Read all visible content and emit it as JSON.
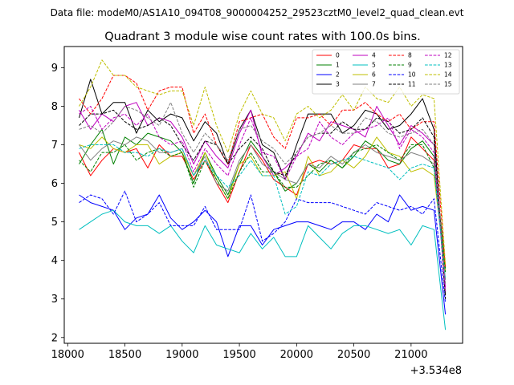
{
  "chart_data": {
    "type": "line",
    "suptitle": "Data file: modeM0/AS1A10_094T08_9000004252_29523cztM0_level2_quad_clean.evt",
    "title": "Quadrant 3 module wise count rates with 100.0s bins.",
    "xlabel": "",
    "ylabel": "",
    "x_offset_label": "+3.534e8",
    "xlim": [
      17970,
      21450
    ],
    "ylim": [
      1.85,
      9.55
    ],
    "xticks": [
      18000,
      18500,
      19000,
      19500,
      20000,
      20500,
      21000
    ],
    "xtick_labels": [
      "18000",
      "18500",
      "19000",
      "19500",
      "20000",
      "20500",
      "21000"
    ],
    "yticks": [
      2,
      3,
      4,
      5,
      6,
      7,
      8,
      9
    ],
    "ytick_labels": [
      "2",
      "3",
      "4",
      "5",
      "6",
      "7",
      "8",
      "9"
    ],
    "grid": false,
    "legend_position": "top-right",
    "x": [
      18100,
      18200,
      18300,
      18400,
      18500,
      18600,
      18700,
      18800,
      18900,
      19000,
      19100,
      19200,
      19300,
      19400,
      19500,
      19600,
      19700,
      19800,
      19900,
      20000,
      20100,
      20200,
      20300,
      20400,
      20500,
      20600,
      20700,
      20800,
      20900,
      21000,
      21100,
      21200,
      21300
    ],
    "series": [
      {
        "name": "0",
        "color": "#ff0000",
        "dash": "solid",
        "values": [
          6.8,
          6.2,
          6.6,
          6.9,
          6.8,
          6.9,
          6.4,
          7.0,
          6.7,
          6.7,
          6.1,
          6.6,
          6.0,
          5.5,
          6.3,
          7.0,
          6.6,
          6.1,
          5.9,
          5.7,
          6.5,
          6.6,
          6.5,
          6.6,
          7.0,
          6.9,
          6.9,
          6.4,
          6.5,
          7.2,
          6.9,
          6.6,
          3.7
        ]
      },
      {
        "name": "1",
        "color": "#008000",
        "dash": "solid",
        "values": [
          6.5,
          7.0,
          7.4,
          6.5,
          7.2,
          7.0,
          7.3,
          7.2,
          7.1,
          6.8,
          6.0,
          6.8,
          6.2,
          5.7,
          6.5,
          7.1,
          6.7,
          6.3,
          5.8,
          6.0,
          6.5,
          6.3,
          6.6,
          6.4,
          6.7,
          7.1,
          6.9,
          6.6,
          6.5,
          6.9,
          7.1,
          6.7,
          3.8
        ]
      },
      {
        "name": "2",
        "color": "#0000ff",
        "dash": "solid",
        "values": [
          5.7,
          5.5,
          5.4,
          5.3,
          4.8,
          5.1,
          5.2,
          5.7,
          5.1,
          4.8,
          5.0,
          5.3,
          5.0,
          4.1,
          4.9,
          4.9,
          4.4,
          4.8,
          4.9,
          5.0,
          5.0,
          4.9,
          4.8,
          5.0,
          5.0,
          4.8,
          5.2,
          5.0,
          5.7,
          5.3,
          5.4,
          5.3,
          2.6
        ]
      },
      {
        "name": "3",
        "color": "#000000",
        "dash": "solid",
        "values": [
          7.7,
          8.7,
          7.8,
          8.1,
          8.1,
          7.3,
          7.9,
          7.6,
          7.8,
          7.7,
          7.1,
          7.6,
          7.3,
          6.5,
          7.4,
          7.9,
          7.0,
          6.8,
          6.1,
          7.0,
          7.8,
          7.8,
          7.8,
          7.3,
          7.5,
          7.9,
          7.8,
          7.4,
          7.5,
          7.8,
          8.2,
          7.4,
          3.1
        ]
      },
      {
        "name": "4",
        "color": "#bf00bf",
        "dash": "solid",
        "values": [
          7.9,
          7.4,
          7.8,
          7.6,
          8.0,
          8.1,
          7.5,
          7.7,
          7.6,
          7.2,
          6.5,
          7.1,
          6.7,
          6.4,
          7.3,
          7.9,
          6.7,
          6.2,
          6.4,
          6.7,
          7.3,
          7.1,
          7.6,
          7.5,
          7.4,
          7.2,
          8.0,
          7.5,
          7.0,
          7.5,
          7.3,
          7.0,
          3.3
        ]
      },
      {
        "name": "5",
        "color": "#00bfbf",
        "dash": "solid",
        "values": [
          4.8,
          5.0,
          5.2,
          5.3,
          5.0,
          4.9,
          4.9,
          4.7,
          4.9,
          4.5,
          4.2,
          4.9,
          4.4,
          4.3,
          4.2,
          4.7,
          4.3,
          4.6,
          4.1,
          4.1,
          4.9,
          4.6,
          4.3,
          4.7,
          4.9,
          4.9,
          4.8,
          4.7,
          4.8,
          4.4,
          4.9,
          4.8,
          2.2
        ]
      },
      {
        "name": "6",
        "color": "#bfbf00",
        "dash": "solid",
        "values": [
          7.0,
          6.9,
          7.2,
          6.9,
          6.8,
          7.0,
          7.0,
          6.5,
          6.7,
          6.8,
          6.2,
          6.8,
          6.1,
          5.6,
          6.5,
          6.7,
          6.2,
          6.2,
          6.3,
          5.6,
          6.7,
          6.2,
          6.3,
          6.6,
          6.4,
          6.7,
          7.2,
          6.8,
          6.7,
          6.3,
          6.4,
          6.2,
          3.7
        ]
      },
      {
        "name": "7",
        "color": "#808080",
        "dash": "solid",
        "values": [
          7.0,
          6.6,
          6.9,
          7.1,
          7.0,
          7.2,
          7.1,
          6.8,
          6.8,
          6.9,
          6.2,
          6.7,
          6.0,
          5.8,
          6.6,
          7.0,
          6.5,
          6.3,
          6.1,
          6.0,
          6.5,
          6.4,
          6.7,
          6.5,
          6.8,
          7.0,
          6.8,
          6.7,
          6.6,
          6.8,
          6.7,
          6.5,
          3.5
        ]
      },
      {
        "name": "8",
        "color": "#ff0000",
        "dash": "dashed",
        "values": [
          8.2,
          7.8,
          8.2,
          8.8,
          8.8,
          8.6,
          7.9,
          8.4,
          8.5,
          8.5,
          7.3,
          7.8,
          7.0,
          6.5,
          7.6,
          7.7,
          7.8,
          7.2,
          6.9,
          7.7,
          7.7,
          7.8,
          7.5,
          7.9,
          7.9,
          8.1,
          7.8,
          7.6,
          7.8,
          7.4,
          7.6,
          7.6,
          3.8
        ]
      },
      {
        "name": "9",
        "color": "#008000",
        "dash": "dashed",
        "values": [
          6.6,
          6.3,
          6.8,
          6.8,
          7.0,
          6.6,
          6.8,
          6.9,
          6.7,
          6.8,
          5.9,
          6.6,
          6.1,
          5.6,
          6.3,
          6.8,
          6.3,
          6.3,
          5.9,
          5.9,
          6.2,
          6.5,
          6.6,
          6.4,
          6.8,
          6.9,
          7.0,
          6.8,
          6.6,
          7.0,
          7.0,
          6.4,
          3.7
        ]
      },
      {
        "name": "10",
        "color": "#0000ff",
        "dash": "dashed",
        "values": [
          5.5,
          5.7,
          5.6,
          5.2,
          5.8,
          5.0,
          5.2,
          5.5,
          4.9,
          4.9,
          4.9,
          5.4,
          4.8,
          4.8,
          4.8,
          5.7,
          4.5,
          4.7,
          5.0,
          5.6,
          5.5,
          5.5,
          5.5,
          5.4,
          5.3,
          5.2,
          5.5,
          5.4,
          5.3,
          5.4,
          5.2,
          5.6,
          2.9
        ]
      },
      {
        "name": "11",
        "color": "#000000",
        "dash": "dashed",
        "values": [
          7.5,
          7.8,
          7.8,
          7.9,
          7.6,
          7.4,
          7.5,
          7.7,
          7.5,
          7.0,
          6.6,
          7.1,
          7.0,
          6.5,
          6.9,
          7.2,
          6.9,
          6.3,
          6.2,
          6.8,
          7.2,
          7.3,
          7.3,
          7.6,
          7.4,
          7.4,
          7.7,
          7.6,
          7.3,
          7.4,
          7.7,
          7.2,
          3.0
        ]
      },
      {
        "name": "12",
        "color": "#bf00bf",
        "dash": "dashed",
        "values": [
          7.8,
          8.0,
          7.4,
          7.7,
          7.8,
          7.5,
          7.8,
          7.2,
          7.0,
          7.1,
          6.3,
          6.9,
          6.5,
          6.2,
          7.0,
          7.7,
          6.8,
          6.7,
          6.1,
          6.7,
          6.9,
          7.6,
          7.2,
          7.0,
          7.3,
          7.4,
          7.5,
          7.7,
          6.9,
          7.4,
          7.2,
          6.8,
          3.2
        ]
      },
      {
        "name": "13",
        "color": "#00bfbf",
        "dash": "dashed",
        "values": [
          6.9,
          7.0,
          7.0,
          7.0,
          6.8,
          6.8,
          6.7,
          6.9,
          6.8,
          6.9,
          6.2,
          6.6,
          6.2,
          5.9,
          6.2,
          6.6,
          6.2,
          6.2,
          5.2,
          5.4,
          6.3,
          6.2,
          6.5,
          6.6,
          6.7,
          6.6,
          6.5,
          6.4,
          6.1,
          6.4,
          6.5,
          6.4,
          3.5
        ]
      },
      {
        "name": "14",
        "color": "#bfbf00",
        "dash": "dashed",
        "values": [
          8.0,
          8.5,
          9.2,
          8.8,
          8.8,
          8.5,
          8.4,
          8.3,
          8.4,
          8.4,
          7.5,
          8.5,
          7.5,
          6.8,
          7.8,
          8.4,
          7.8,
          7.7,
          7.1,
          7.8,
          8.0,
          7.7,
          7.9,
          8.3,
          7.9,
          8.5,
          8.2,
          8.1,
          8.5,
          8.0,
          8.3,
          8.2,
          3.9
        ]
      },
      {
        "name": "15",
        "color": "#808080",
        "dash": "dashed",
        "values": [
          7.4,
          7.5,
          7.3,
          7.6,
          8.0,
          7.9,
          7.7,
          7.5,
          8.1,
          7.3,
          6.8,
          7.3,
          7.0,
          6.6,
          7.4,
          7.5,
          7.1,
          6.9,
          6.5,
          6.8,
          7.2,
          7.3,
          7.5,
          7.3,
          7.3,
          7.7,
          7.6,
          7.3,
          7.2,
          7.3,
          7.4,
          7.0,
          3.4
        ]
      }
    ]
  }
}
